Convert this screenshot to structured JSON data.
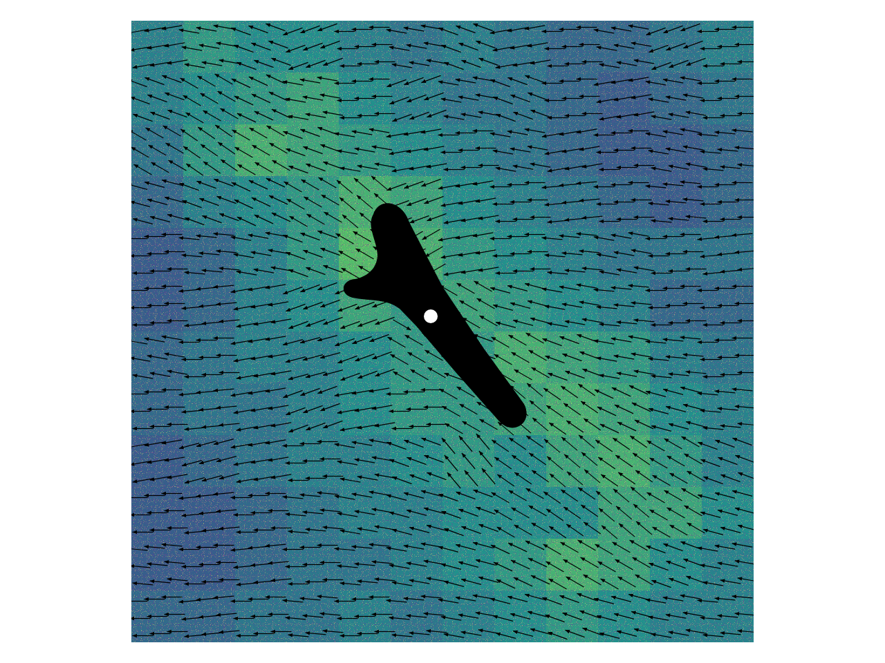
{
  "chart_data": {
    "type": "heatmap",
    "tick_labels": false,
    "color_range": [
      0,
      1
    ],
    "cells": [
      [
        0.45,
        0.55,
        0.5,
        0.5,
        0.45,
        0.4,
        0.45,
        0.4,
        0.35,
        0.35,
        0.4,
        0.45
      ],
      [
        0.45,
        0.5,
        0.55,
        0.6,
        0.5,
        0.45,
        0.4,
        0.4,
        0.35,
        0.3,
        0.35,
        0.4
      ],
      [
        0.4,
        0.55,
        0.65,
        0.6,
        0.55,
        0.5,
        0.45,
        0.4,
        0.35,
        0.3,
        0.3,
        0.35
      ],
      [
        0.35,
        0.45,
        0.5,
        0.55,
        0.65,
        0.6,
        0.5,
        0.45,
        0.4,
        0.35,
        0.3,
        0.35
      ],
      [
        0.3,
        0.35,
        0.45,
        0.55,
        0.7,
        0.65,
        0.55,
        0.5,
        0.45,
        0.4,
        0.4,
        0.4
      ],
      [
        0.3,
        0.35,
        0.45,
        0.5,
        0.6,
        0.55,
        0.6,
        0.55,
        0.5,
        0.45,
        0.35,
        0.35
      ],
      [
        0.35,
        0.4,
        0.45,
        0.45,
        0.5,
        0.55,
        0.55,
        0.65,
        0.6,
        0.55,
        0.45,
        0.4
      ],
      [
        0.35,
        0.4,
        0.4,
        0.45,
        0.5,
        0.55,
        0.55,
        0.6,
        0.65,
        0.6,
        0.5,
        0.45
      ],
      [
        0.3,
        0.35,
        0.4,
        0.45,
        0.45,
        0.5,
        0.55,
        0.5,
        0.6,
        0.65,
        0.55,
        0.45
      ],
      [
        0.3,
        0.3,
        0.35,
        0.4,
        0.45,
        0.45,
        0.5,
        0.5,
        0.5,
        0.6,
        0.6,
        0.5
      ],
      [
        0.3,
        0.3,
        0.35,
        0.4,
        0.4,
        0.45,
        0.5,
        0.55,
        0.65,
        0.6,
        0.5,
        0.45
      ],
      [
        0.35,
        0.35,
        0.4,
        0.4,
        0.45,
        0.4,
        0.45,
        0.5,
        0.55,
        0.5,
        0.45,
        0.45
      ]
    ],
    "arrow_angles": [
      [
        190,
        170,
        160,
        200,
        180,
        170,
        160,
        190,
        180,
        170,
        200,
        180
      ],
      [
        160,
        150,
        155,
        170,
        180,
        200,
        170,
        160,
        180,
        190,
        170,
        180
      ],
      [
        150,
        145,
        150,
        160,
        170,
        190,
        180,
        170,
        190,
        180,
        170,
        175
      ],
      [
        165,
        160,
        155,
        150,
        140,
        200,
        190,
        180,
        185,
        180,
        175,
        180
      ],
      [
        180,
        175,
        170,
        160,
        150,
        210,
        190,
        180,
        175,
        170,
        180,
        185
      ],
      [
        180,
        185,
        190,
        200,
        200,
        330,
        150,
        165,
        170,
        175,
        180,
        180
      ],
      [
        170,
        180,
        190,
        195,
        200,
        150,
        160,
        150,
        160,
        170,
        175,
        180
      ],
      [
        180,
        185,
        190,
        200,
        190,
        180,
        150,
        140,
        145,
        155,
        165,
        175
      ],
      [
        190,
        195,
        190,
        180,
        170,
        160,
        130,
        145,
        140,
        145,
        150,
        160
      ],
      [
        180,
        185,
        180,
        175,
        170,
        165,
        160,
        150,
        145,
        140,
        150,
        165
      ],
      [
        175,
        180,
        185,
        180,
        175,
        170,
        165,
        155,
        150,
        150,
        160,
        170
      ],
      [
        180,
        185,
        180,
        175,
        180,
        175,
        170,
        165,
        160,
        165,
        170,
        175
      ]
    ]
  }
}
